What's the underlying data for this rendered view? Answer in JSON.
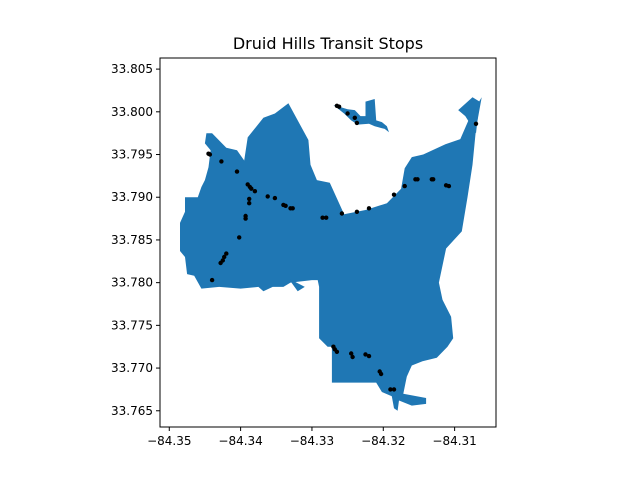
{
  "chart_data": {
    "type": "map",
    "title": "Druid Hills Transit Stops",
    "xlabel": "",
    "ylabel": "",
    "xlim": [
      -84.3513,
      -84.3042
    ],
    "ylim": [
      33.7631,
      33.8063
    ],
    "grid": false,
    "region_color": "#1f77b4",
    "stop_color": "#000000",
    "x_ticks": [
      {
        "value": -84.35,
        "label": "−84.35"
      },
      {
        "value": -84.34,
        "label": "−84.34"
      },
      {
        "value": -84.33,
        "label": "−84.33"
      },
      {
        "value": -84.32,
        "label": "−84.32"
      },
      {
        "value": -84.31,
        "label": "−84.31"
      }
    ],
    "y_ticks": [
      {
        "value": 33.765,
        "label": "33.765"
      },
      {
        "value": 33.77,
        "label": "33.770"
      },
      {
        "value": 33.775,
        "label": "33.775"
      },
      {
        "value": 33.78,
        "label": "33.780"
      },
      {
        "value": 33.785,
        "label": "33.785"
      },
      {
        "value": 33.79,
        "label": "33.790"
      },
      {
        "value": 33.795,
        "label": "33.795"
      },
      {
        "value": 33.8,
        "label": "33.800"
      },
      {
        "value": 33.805,
        "label": "33.805"
      }
    ],
    "boundary_main": [
      [
        -84.3333,
        33.801
      ],
      [
        -84.3305,
        33.7967
      ],
      [
        -84.3302,
        33.7938
      ],
      [
        -84.3293,
        33.792
      ],
      [
        -84.3275,
        33.7917
      ],
      [
        -84.3255,
        33.788
      ],
      [
        -84.3225,
        33.7885
      ],
      [
        -84.3195,
        33.7893
      ],
      [
        -84.3175,
        33.791
      ],
      [
        -84.317,
        33.7934
      ],
      [
        -84.316,
        33.7947
      ],
      [
        -84.3144,
        33.795
      ],
      [
        -84.3113,
        33.7962
      ],
      [
        -84.3092,
        33.7968
      ],
      [
        -84.3078,
        33.7995
      ],
      [
        -84.3062,
        33.8017
      ],
      [
        -84.307,
        33.798
      ],
      [
        -84.3075,
        33.7938
      ],
      [
        -84.3082,
        33.79
      ],
      [
        -84.309,
        33.786
      ],
      [
        -84.3112,
        33.784
      ],
      [
        -84.3122,
        33.78
      ],
      [
        -84.3117,
        33.778
      ],
      [
        -84.3105,
        33.776
      ],
      [
        -84.3102,
        33.7735
      ],
      [
        -84.311,
        33.7725
      ],
      [
        -84.3125,
        33.7712
      ],
      [
        -84.3145,
        33.7708
      ],
      [
        -84.316,
        33.7703
      ],
      [
        -84.3167,
        33.769
      ],
      [
        -84.3172,
        33.767
      ],
      [
        -84.314,
        33.7665
      ],
      [
        -84.314,
        33.7658
      ],
      [
        -84.316,
        33.7656
      ],
      [
        -84.3178,
        33.7662
      ],
      [
        -84.318,
        33.765
      ],
      [
        -84.3185,
        33.7653
      ],
      [
        -84.3188,
        33.7667
      ],
      [
        -84.3202,
        33.7672
      ],
      [
        -84.321,
        33.7683
      ],
      [
        -84.3225,
        33.7683
      ],
      [
        -84.324,
        33.7683
      ],
      [
        -84.3262,
        33.7683
      ],
      [
        -84.3272,
        33.7683
      ],
      [
        -84.3272,
        33.7692
      ],
      [
        -84.3272,
        33.771
      ],
      [
        -84.3272,
        33.7725
      ],
      [
        -84.3278,
        33.7725
      ],
      [
        -84.329,
        33.7735
      ],
      [
        -84.329,
        33.775
      ],
      [
        -84.329,
        33.7795
      ],
      [
        -84.3292,
        33.7803
      ],
      [
        -84.33,
        33.7803
      ],
      [
        -84.333,
        33.78
      ],
      [
        -84.334,
        33.7795
      ],
      [
        -84.3355,
        33.7795
      ],
      [
        -84.3368,
        33.779
      ],
      [
        -84.3375,
        33.7795
      ],
      [
        -84.34,
        33.7793
      ],
      [
        -84.343,
        33.7795
      ],
      [
        -84.3455,
        33.7793
      ],
      [
        -84.3465,
        33.7808
      ],
      [
        -84.3475,
        33.781
      ],
      [
        -84.3478,
        33.783
      ],
      [
        -84.3485,
        33.7837
      ],
      [
        -84.3485,
        33.787
      ],
      [
        -84.3478,
        33.7883
      ],
      [
        -84.3478,
        33.79
      ],
      [
        -84.346,
        33.79
      ],
      [
        -84.3455,
        33.7912
      ],
      [
        -84.345,
        33.792
      ],
      [
        -84.3445,
        33.7935
      ],
      [
        -84.3442,
        33.7955
      ],
      [
        -84.345,
        33.7963
      ],
      [
        -84.3448,
        33.7975
      ],
      [
        -84.344,
        33.7975
      ],
      [
        -84.342,
        33.7958
      ],
      [
        -84.3405,
        33.7955
      ],
      [
        -84.3395,
        33.7943
      ],
      [
        -84.339,
        33.797
      ],
      [
        -84.3368,
        33.7993
      ],
      [
        -84.3352,
        33.7998
      ]
    ],
    "boundary_islands": [
      [
        [
          -84.327,
          33.8008
        ],
        [
          -84.325,
          33.8003
        ],
        [
          -84.324,
          33.8002
        ],
        [
          -84.3232,
          33.7995
        ],
        [
          -84.3225,
          33.7995
        ],
        [
          -84.3225,
          33.8012
        ],
        [
          -84.3212,
          33.8015
        ],
        [
          -84.321,
          33.799
        ],
        [
          -84.3202,
          33.7988
        ],
        [
          -84.3195,
          33.7983
        ],
        [
          -84.3192,
          33.7976
        ],
        [
          -84.3198,
          33.798
        ],
        [
          -84.3212,
          33.7983
        ],
        [
          -84.322,
          33.7986
        ],
        [
          -84.3236,
          33.7985
        ],
        [
          -84.3245,
          33.799
        ],
        [
          -84.3255,
          33.7998
        ]
      ],
      [
        [
          -84.307,
          33.7975
        ],
        [
          -84.3085,
          33.7995
        ],
        [
          -84.3095,
          33.8002
        ],
        [
          -84.3075,
          33.8017
        ],
        [
          -84.3065,
          33.8012
        ]
      ],
      [
        [
          -84.3333,
          33.7805
        ],
        [
          -84.331,
          33.7795
        ],
        [
          -84.332,
          33.779
        ]
      ]
    ],
    "stops": [
      [
        -84.3445,
        33.7951
      ],
      [
        -84.3443,
        33.795
      ],
      [
        -84.3427,
        33.7942
      ],
      [
        -84.3405,
        33.793
      ],
      [
        -84.339,
        33.7915
      ],
      [
        -84.3387,
        33.7912
      ],
      [
        -84.3385,
        33.791
      ],
      [
        -84.338,
        33.7907
      ],
      [
        -84.3388,
        33.7898
      ],
      [
        -84.3388,
        33.7893
      ],
      [
        -84.3393,
        33.7878
      ],
      [
        -84.3393,
        33.7875
      ],
      [
        -84.3402,
        33.7853
      ],
      [
        -84.342,
        33.7834
      ],
      [
        -84.3423,
        33.783
      ],
      [
        -84.3425,
        33.7826
      ],
      [
        -84.3428,
        33.7823
      ],
      [
        -84.344,
        33.7803
      ],
      [
        -84.3362,
        33.7901
      ],
      [
        -84.3352,
        33.7899
      ],
      [
        -84.334,
        33.7891
      ],
      [
        -84.3337,
        33.789
      ],
      [
        -84.333,
        33.7887
      ],
      [
        -84.3327,
        33.7887
      ],
      [
        -84.3285,
        33.7876
      ],
      [
        -84.328,
        33.7876
      ],
      [
        -84.3258,
        33.7881
      ],
      [
        -84.3237,
        33.7883
      ],
      [
        -84.322,
        33.7887
      ],
      [
        -84.3185,
        33.7903
      ],
      [
        -84.317,
        33.7913
      ],
      [
        -84.3155,
        33.7921
      ],
      [
        -84.3152,
        33.7921
      ],
      [
        -84.3132,
        33.7921
      ],
      [
        -84.313,
        33.7921
      ],
      [
        -84.3112,
        33.7914
      ],
      [
        -84.3108,
        33.7913
      ],
      [
        -84.307,
        33.7986
      ],
      [
        -84.3265,
        33.8007
      ],
      [
        -84.3262,
        33.8006
      ],
      [
        -84.325,
        33.7998
      ],
      [
        -84.324,
        33.7993
      ],
      [
        -84.3237,
        33.7987
      ],
      [
        -84.327,
        33.7725
      ],
      [
        -84.3268,
        33.7722
      ],
      [
        -84.3265,
        33.7719
      ],
      [
        -84.3245,
        33.7717
      ],
      [
        -84.3243,
        33.7713
      ],
      [
        -84.3225,
        33.7716
      ],
      [
        -84.322,
        33.7714
      ],
      [
        -84.3205,
        33.7696
      ],
      [
        -84.3203,
        33.7693
      ],
      [
        -84.319,
        33.7675
      ],
      [
        -84.3185,
        33.7675
      ]
    ]
  }
}
